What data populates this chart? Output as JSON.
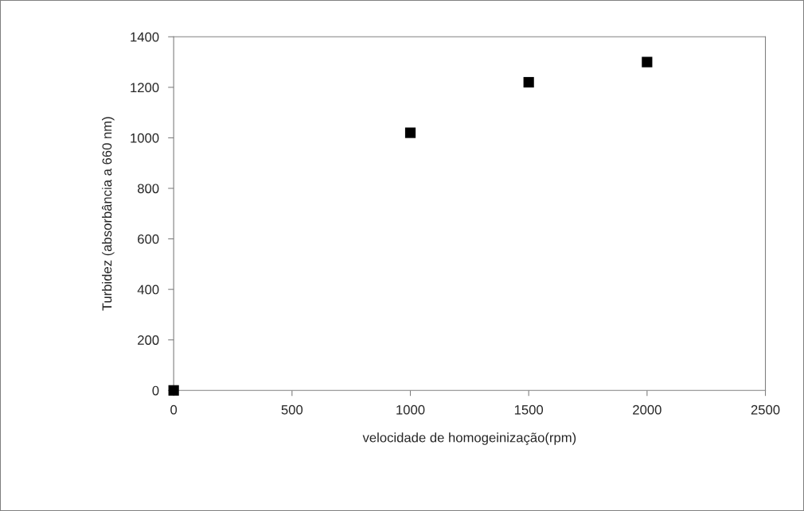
{
  "chart_data": {
    "type": "scatter",
    "xlabel": "velocidade de homogeinização(rpm)",
    "ylabel": "Turbidez (absorbância a 660 nm)",
    "x": [
      0,
      1000,
      1500,
      2000
    ],
    "series": [
      {
        "color": "#000000",
        "values": [
          0,
          1020,
          1220,
          1300
        ]
      }
    ],
    "xlim": [
      0,
      2500
    ],
    "xticks": [
      0,
      500,
      1000,
      1500,
      2000,
      2500
    ],
    "ylim": [
      0,
      1400
    ],
    "yticks": [
      0,
      200,
      400,
      600,
      800,
      1000,
      1200,
      1400
    ],
    "marker": "square",
    "grid": false,
    "legend": false
  }
}
